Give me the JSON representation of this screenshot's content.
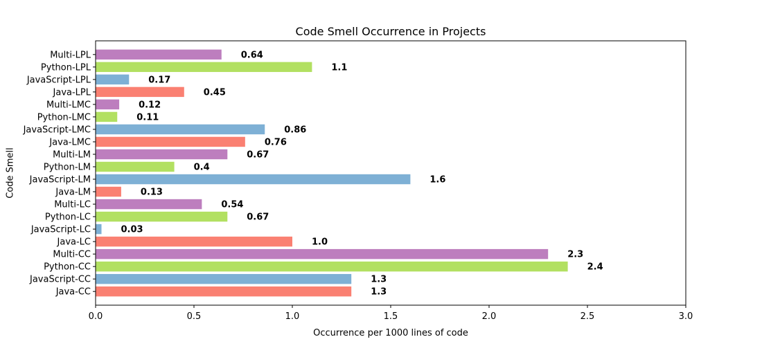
{
  "chart_data": {
    "type": "bar",
    "orientation": "horizontal",
    "title": "Code Smell Occurrence in Projects",
    "xlabel": "Occurrence per 1000 lines of code",
    "ylabel": "Code Smell",
    "xlim": [
      0,
      3.0
    ],
    "xticks": [
      "0.0",
      "0.5",
      "1.0",
      "1.5",
      "2.0",
      "2.5",
      "3.0"
    ],
    "grid": false,
    "categories": [
      "Java-CC",
      "JavaScript-CC",
      "Python-CC",
      "Multi-CC",
      "Java-LC",
      "JavaScript-LC",
      "Python-LC",
      "Multi-LC",
      "Java-LM",
      "JavaScript-LM",
      "Python-LM",
      "Multi-LM",
      "Java-LMC",
      "JavaScript-LMC",
      "Python-LMC",
      "Multi-LMC",
      "Java-LPL",
      "JavaScript-LPL",
      "Python-LPL",
      "Multi-LPL"
    ],
    "values": [
      1.3,
      1.3,
      2.4,
      2.3,
      1.0,
      0.03,
      0.67,
      0.54,
      0.13,
      1.6,
      0.4,
      0.67,
      0.76,
      0.86,
      0.11,
      0.12,
      0.45,
      0.17,
      1.1,
      0.64
    ],
    "value_labels": [
      "1.3",
      "1.3",
      "2.4",
      "2.3",
      "1.0",
      "0.03",
      "0.67",
      "0.54",
      "0.13",
      "1.6",
      "0.4",
      "0.67",
      "0.76",
      "0.86",
      "0.11",
      "0.12",
      "0.45",
      "0.17",
      "1.1",
      "0.64"
    ],
    "colors": [
      "#fa8072",
      "#7eb0d5",
      "#b2e061",
      "#bd7ebe",
      "#fa8072",
      "#7eb0d5",
      "#b2e061",
      "#bd7ebe",
      "#fa8072",
      "#7eb0d5",
      "#b2e061",
      "#bd7ebe",
      "#fa8072",
      "#7eb0d5",
      "#b2e061",
      "#bd7ebe",
      "#fa8072",
      "#7eb0d5",
      "#b2e061",
      "#bd7ebe"
    ]
  }
}
